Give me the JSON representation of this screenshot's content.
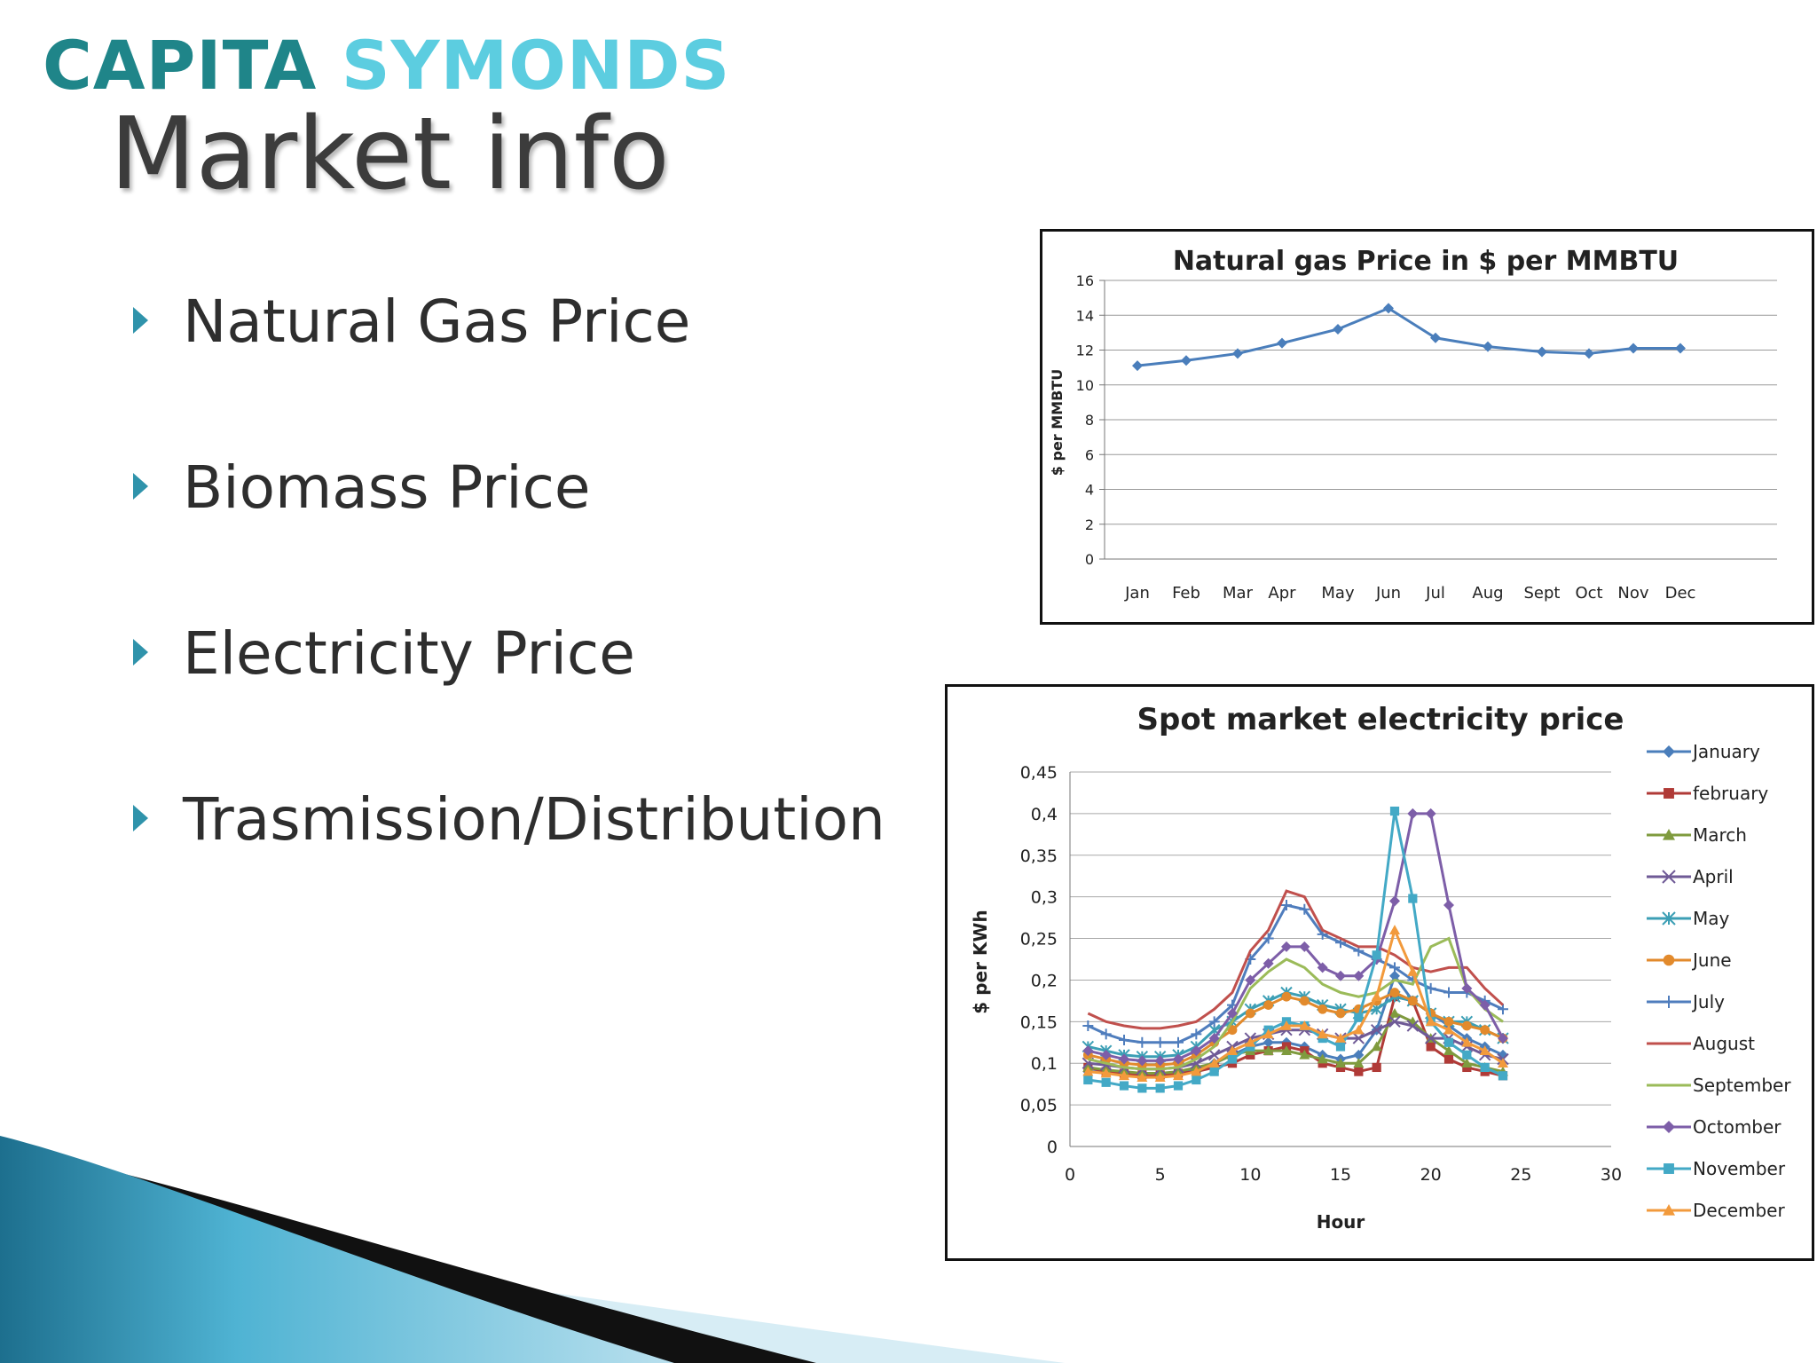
{
  "logo": {
    "word1": "CAPITA",
    "word2": "SYMONDS"
  },
  "page_title": "Market info",
  "bullets": [
    "Natural Gas Price",
    "Biomass Price",
    "Electricity Price",
    "Trasmission/Distribution"
  ],
  "colors": {
    "logo_teal": "#1f8589",
    "logo_cyan": "#5ccde0",
    "bullet_arrow": "#2f93ab",
    "gas_line": "#4a7ebb"
  },
  "chart_data": [
    {
      "type": "line",
      "title": "Natural gas Price in $ per MMBTU",
      "ylabel": "$ per MMBTU",
      "xlabel": "",
      "categories": [
        "Jan",
        "Feb",
        "Mar",
        "Apr",
        "May",
        "Jun",
        "Jul",
        "Aug",
        "Sept",
        "Oct",
        "Nov",
        "Dec"
      ],
      "values": [
        11.1,
        11.4,
        11.8,
        12.4,
        13.2,
        14.4,
        12.7,
        12.2,
        11.9,
        11.8,
        12.1,
        12.1
      ],
      "ylim": [
        0,
        16
      ],
      "yticks": [
        "0",
        "2",
        "4",
        "6",
        "8",
        "10",
        "12",
        "14",
        "16"
      ],
      "grid": true,
      "legend": "none",
      "color": "#4a7ebb"
    },
    {
      "type": "line",
      "title": "Spot market electricity price",
      "xlabel": "Hour",
      "ylabel": "$ per KWh",
      "xlim": [
        0,
        30
      ],
      "ylim": [
        0,
        0.45
      ],
      "xticks": [
        "0",
        "5",
        "10",
        "15",
        "20",
        "25",
        "30"
      ],
      "yticks": [
        "0",
        "0,05",
        "0,1",
        "0,15",
        "0,2",
        "0,25",
        "0,3",
        "0,35",
        "0,4",
        "0,45"
      ],
      "grid": true,
      "legend": "right",
      "x": [
        1,
        2,
        3,
        4,
        5,
        6,
        7,
        8,
        9,
        10,
        11,
        12,
        13,
        14,
        15,
        16,
        17,
        18,
        19,
        20,
        21,
        22,
        23,
        24
      ],
      "series": [
        {
          "name": "January",
          "color": "#4a7ebb",
          "marker": "diamond",
          "values": [
            0.09,
            0.09,
            0.088,
            0.086,
            0.086,
            0.088,
            0.092,
            0.1,
            0.11,
            0.12,
            0.125,
            0.125,
            0.12,
            0.11,
            0.105,
            0.11,
            0.14,
            0.205,
            0.175,
            0.16,
            0.145,
            0.13,
            0.12,
            0.11
          ]
        },
        {
          "name": "february",
          "color": "#b03a37",
          "marker": "square",
          "values": [
            0.095,
            0.09,
            0.088,
            0.086,
            0.086,
            0.088,
            0.09,
            0.095,
            0.1,
            0.11,
            0.115,
            0.12,
            0.115,
            0.1,
            0.095,
            0.09,
            0.095,
            0.18,
            0.175,
            0.12,
            0.105,
            0.095,
            0.09,
            0.085
          ]
        },
        {
          "name": "March",
          "color": "#7f9b3e",
          "marker": "triangle",
          "values": [
            0.095,
            0.092,
            0.09,
            0.088,
            0.088,
            0.09,
            0.095,
            0.1,
            0.11,
            0.115,
            0.115,
            0.115,
            0.11,
            0.105,
            0.1,
            0.1,
            0.12,
            0.16,
            0.15,
            0.13,
            0.115,
            0.1,
            0.095,
            0.09
          ]
        },
        {
          "name": "April",
          "color": "#6f5a96",
          "marker": "x",
          "values": [
            0.1,
            0.098,
            0.095,
            0.093,
            0.093,
            0.095,
            0.1,
            0.11,
            0.12,
            0.13,
            0.135,
            0.14,
            0.14,
            0.135,
            0.13,
            0.13,
            0.14,
            0.15,
            0.145,
            0.13,
            0.13,
            0.12,
            0.11,
            0.105
          ]
        },
        {
          "name": "May",
          "color": "#3c9fb5",
          "marker": "asterisk",
          "values": [
            0.12,
            0.115,
            0.11,
            0.108,
            0.108,
            0.11,
            0.12,
            0.14,
            0.15,
            0.165,
            0.175,
            0.185,
            0.18,
            0.17,
            0.165,
            0.16,
            0.165,
            0.18,
            0.175,
            0.16,
            0.15,
            0.15,
            0.14,
            0.13
          ]
        },
        {
          "name": "June",
          "color": "#e28a2c",
          "marker": "circle",
          "values": [
            0.11,
            0.105,
            0.1,
            0.098,
            0.098,
            0.1,
            0.11,
            0.125,
            0.14,
            0.16,
            0.17,
            0.18,
            0.175,
            0.165,
            0.16,
            0.165,
            0.175,
            0.185,
            0.175,
            0.16,
            0.15,
            0.145,
            0.14,
            0.13
          ]
        },
        {
          "name": "July",
          "color": "#4f7dbd",
          "marker": "plus",
          "values": [
            0.145,
            0.135,
            0.128,
            0.125,
            0.125,
            0.125,
            0.135,
            0.15,
            0.17,
            0.225,
            0.25,
            0.29,
            0.285,
            0.255,
            0.245,
            0.235,
            0.225,
            0.215,
            0.2,
            0.19,
            0.185,
            0.185,
            0.175,
            0.165
          ]
        },
        {
          "name": "August",
          "color": "#c0504d",
          "marker": "none",
          "values": [
            0.16,
            0.15,
            0.145,
            0.142,
            0.142,
            0.145,
            0.15,
            0.165,
            0.185,
            0.235,
            0.26,
            0.307,
            0.3,
            0.26,
            0.25,
            0.24,
            0.24,
            0.23,
            0.215,
            0.21,
            0.215,
            0.215,
            0.19,
            0.17
          ]
        },
        {
          "name": "September",
          "color": "#9bbb59",
          "marker": "none",
          "values": [
            0.105,
            0.1,
            0.095,
            0.093,
            0.093,
            0.095,
            0.105,
            0.12,
            0.15,
            0.19,
            0.21,
            0.225,
            0.215,
            0.195,
            0.185,
            0.18,
            0.185,
            0.2,
            0.195,
            0.24,
            0.25,
            0.19,
            0.165,
            0.15
          ]
        },
        {
          "name": "Octomber",
          "color": "#7d5ea8",
          "marker": "diamond",
          "values": [
            0.115,
            0.11,
            0.105,
            0.103,
            0.103,
            0.105,
            0.115,
            0.13,
            0.16,
            0.2,
            0.22,
            0.24,
            0.24,
            0.215,
            0.205,
            0.205,
            0.225,
            0.295,
            0.4,
            0.4,
            0.29,
            0.19,
            0.17,
            0.13
          ]
        },
        {
          "name": "November",
          "color": "#43a9c6",
          "marker": "square",
          "values": [
            0.08,
            0.077,
            0.073,
            0.07,
            0.07,
            0.073,
            0.08,
            0.09,
            0.105,
            0.12,
            0.14,
            0.15,
            0.145,
            0.13,
            0.12,
            0.155,
            0.23,
            0.403,
            0.298,
            0.15,
            0.125,
            0.11,
            0.095,
            0.085
          ]
        },
        {
          "name": "December",
          "color": "#f29a3c",
          "marker": "triangle",
          "values": [
            0.09,
            0.088,
            0.085,
            0.083,
            0.083,
            0.085,
            0.09,
            0.1,
            0.115,
            0.125,
            0.135,
            0.145,
            0.145,
            0.135,
            0.13,
            0.14,
            0.18,
            0.26,
            0.21,
            0.15,
            0.14,
            0.125,
            0.115,
            0.1
          ]
        }
      ]
    }
  ]
}
